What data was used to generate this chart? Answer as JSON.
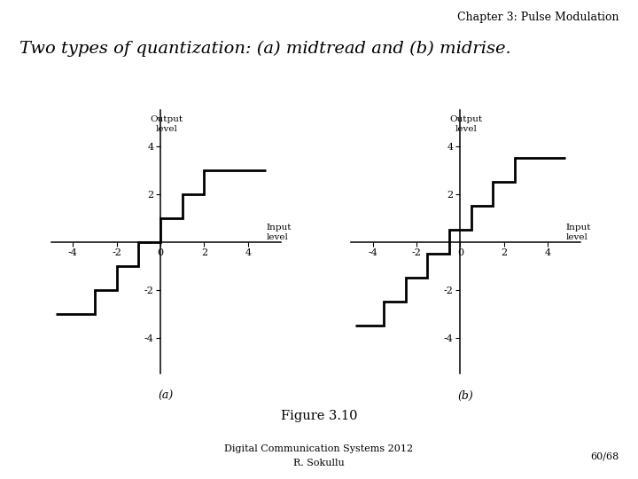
{
  "title_chapter": "Chapter 3: Pulse Modulation",
  "subtitle": "Two types of quantization: (a) midtread and (b) midrise.",
  "figure_label": "Figure 3.10",
  "footer_line1": "Digital Communication Systems 2012",
  "footer_line2": "R. Sokullu",
  "footer_right": "60/68",
  "xlabel": "Input\nlevel",
  "ylabel": "Output\nlevel",
  "xlim": [
    -5.0,
    5.5
  ],
  "ylim": [
    -5.5,
    5.5
  ],
  "xticks": [
    -4,
    -2,
    0,
    2,
    4
  ],
  "yticks": [
    -4,
    -2,
    2,
    4
  ],
  "label_a": "(a)",
  "label_b": "(b)",
  "midtread_x": [
    -4.8,
    -3,
    -3,
    -2,
    -2,
    -1,
    -1,
    0,
    0,
    1,
    1,
    2,
    2,
    3,
    3,
    4.8
  ],
  "midtread_y": [
    -3,
    -3,
    -2,
    -2,
    -1,
    -1,
    0,
    0,
    1,
    1,
    2,
    2,
    3,
    3,
    3,
    3
  ],
  "midrise_x": [
    -4.8,
    -3.5,
    -3.5,
    -2.5,
    -2.5,
    -1.5,
    -1.5,
    -0.5,
    -0.5,
    0.5,
    0.5,
    1.5,
    1.5,
    2.5,
    2.5,
    3.5,
    3.5,
    4.8
  ],
  "midrise_y": [
    -3.5,
    -3.5,
    -2.5,
    -2.5,
    -1.5,
    -1.5,
    -0.5,
    -0.5,
    0.5,
    0.5,
    1.5,
    1.5,
    2.5,
    2.5,
    3.5,
    3.5,
    3.5,
    3.5
  ],
  "line_color": "#000000",
  "line_width": 2.0,
  "axis_color": "#000000",
  "bg_color": "#ffffff",
  "font_family": "serif",
  "title_fontsize": 9,
  "subtitle_fontsize": 14,
  "tick_fontsize": 8,
  "axlabel_fontsize": 7.5,
  "footer_fontsize": 8
}
